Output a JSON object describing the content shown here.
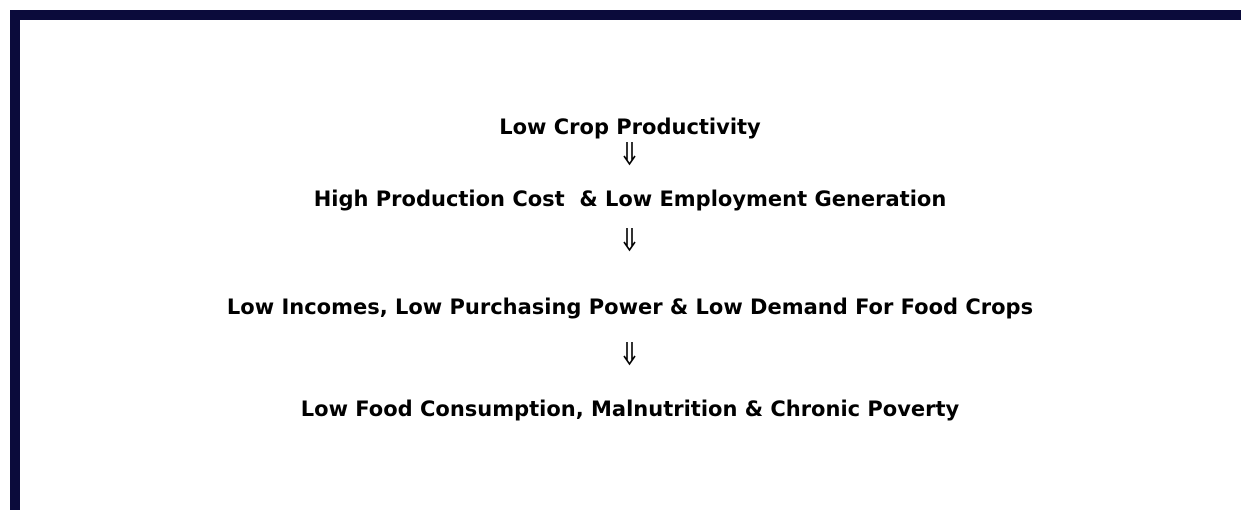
{
  "nodes": [
    {
      "label": "Low Crop Productivity"
    },
    {
      "label": "High Production Cost  & Low Employment Generation"
    },
    {
      "label": "Low Incomes, Low Purchasing Power & Low Demand For Food Crops"
    },
    {
      "label": "Low Food Consumption, Malnutrition & Chronic Poverty"
    }
  ]
}
